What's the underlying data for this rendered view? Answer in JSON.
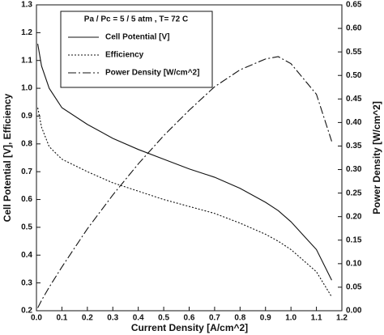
{
  "chart_data": {
    "type": "line",
    "legend_title": "Pa / Pc = 5 / 5 atm  , T= 72 C",
    "xlabel": "Current Density [A/cm^2]",
    "ylabel": "Cell Potential [V], Efficiency",
    "y2label": "Power Density [W/cm^2]",
    "x": [
      0.005,
      0.02,
      0.05,
      0.1,
      0.2,
      0.3,
      0.4,
      0.5,
      0.6,
      0.7,
      0.8,
      0.9,
      0.95,
      1.0,
      1.1,
      1.16
    ],
    "series": [
      {
        "name": "Cell Potential [V]",
        "color": "#111111",
        "dash": "solid",
        "axis": "y",
        "values": [
          1.16,
          1.08,
          1.0,
          0.93,
          0.87,
          0.82,
          0.78,
          0.745,
          0.71,
          0.68,
          0.64,
          0.59,
          0.56,
          0.52,
          0.42,
          0.31
        ]
      },
      {
        "name": "Efficiency",
        "color": "#111111",
        "dash": "dotted",
        "axis": "y",
        "values": [
          0.93,
          0.86,
          0.79,
          0.745,
          0.7,
          0.66,
          0.63,
          0.6,
          0.575,
          0.55,
          0.515,
          0.475,
          0.45,
          0.42,
          0.34,
          0.25
        ]
      },
      {
        "name": "Power Density [W/cm^2]",
        "color": "#111111",
        "dash": "dashdot",
        "axis": "y2",
        "values": [
          0.006,
          0.022,
          0.05,
          0.093,
          0.174,
          0.246,
          0.312,
          0.372,
          0.426,
          0.476,
          0.512,
          0.535,
          0.54,
          0.525,
          0.46,
          0.36
        ]
      }
    ],
    "xlim": [
      0,
      1.2
    ],
    "xticks": [
      {
        "value": 0,
        "label": "0.0"
      },
      0.1,
      0.2,
      0.3,
      0.4,
      0.5,
      0.6,
      0.7,
      0.8,
      0.9,
      {
        "value": 1,
        "label": "1.0"
      },
      1.1,
      1.2
    ],
    "ylim": [
      0.2,
      1.3
    ],
    "yticks": [
      0.2,
      0.3,
      0.4,
      0.5,
      0.6,
      0.7,
      0.8,
      0.9,
      {
        "value": 1,
        "label": "1.0"
      },
      1.1,
      1.2,
      1.3
    ],
    "y2lim": [
      0,
      0.65
    ],
    "y2ticks": [
      {
        "value": 0,
        "label": "0.00"
      },
      0.05,
      {
        "value": 0.1,
        "label": "0.10"
      },
      0.15,
      {
        "value": 0.2,
        "label": "0.20"
      },
      0.25,
      {
        "value": 0.3,
        "label": "0.30"
      },
      0.35,
      {
        "value": 0.4,
        "label": "0.40"
      },
      0.45,
      {
        "value": 0.5,
        "label": "0.50"
      },
      0.55,
      {
        "value": 0.6,
        "label": "0.60"
      },
      0.65
    ]
  }
}
